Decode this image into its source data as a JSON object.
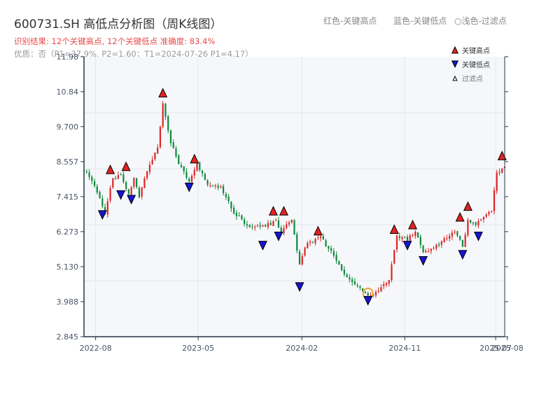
{
  "header": {
    "title": "600731.SH 高低点分析图（周K线图）",
    "result_text": "识别结果: 12个关键高点, 12个关键低点   准确度: 83.4%",
    "quality_text": "优质：否（P1=37.9%, P2=1.60；T1=2024-07-26 P1=4.17）",
    "legend_red": "红色-关键高点",
    "legend_blue": "蓝色-关键低点",
    "legend_light": "○浅色-过滤点"
  },
  "colors": {
    "up": "#e02424",
    "down": "#0f8a3c",
    "high_marker": "#e32222",
    "low_marker": "#1515d6",
    "filtered_marker": "#f0a030",
    "plot_bg": "#f5f7fa",
    "grid": "#e4e7ec",
    "axis": "#2a3546",
    "result_text": "#e84a4a"
  },
  "chart_data": {
    "type": "candlestick",
    "y_ticks": [
      "2.845",
      "3.988",
      "5.130",
      "6.273",
      "7.415",
      "8.557",
      "9.700",
      "10.84",
      "11.98"
    ],
    "y_tick_values": [
      2.845,
      3.988,
      5.13,
      6.273,
      7.415,
      8.557,
      9.7,
      10.84,
      11.98
    ],
    "ylim": [
      2.845,
      11.98
    ],
    "x_ticks": [
      "2022-08",
      "2023-05",
      "2024-02",
      "2024-11",
      "2025-07",
      "2025-08"
    ],
    "x_tick_dates": [
      "2022-08-01",
      "2023-05-01",
      "2024-02-01",
      "2024-11-01",
      "2025-07-01",
      "2025-08-01"
    ],
    "x_range": [
      "2022-07-01",
      "2025-07-25"
    ],
    "grid": true,
    "legend": {
      "position": "top-right",
      "entries": [
        {
          "label": "关键高点",
          "marker": "up-triangle"
        },
        {
          "label": "关键低点",
          "marker": "down-triangle"
        },
        {
          "label": "过滤点",
          "marker": "small-triangle"
        }
      ]
    },
    "anchors": [
      [
        "2022-07-01",
        8.3
      ],
      [
        "2022-08-05",
        7.6
      ],
      [
        "2022-08-26",
        6.9
      ],
      [
        "2022-09-16",
        8.0
      ],
      [
        "2022-10-07",
        8.1
      ],
      [
        "2022-10-28",
        7.5
      ],
      [
        "2022-11-11",
        8.0
      ],
      [
        "2022-11-25",
        7.4
      ],
      [
        "2022-12-16",
        8.3
      ],
      [
        "2023-01-13",
        9.0
      ],
      [
        "2023-01-27",
        10.5
      ],
      [
        "2023-02-17",
        9.2
      ],
      [
        "2023-03-10",
        8.5
      ],
      [
        "2023-04-07",
        7.9
      ],
      [
        "2023-04-28",
        8.5
      ],
      [
        "2023-05-26",
        7.8
      ],
      [
        "2023-06-30",
        7.7
      ],
      [
        "2023-08-04",
        6.9
      ],
      [
        "2023-09-15",
        6.4
      ],
      [
        "2023-10-13",
        6.4
      ],
      [
        "2023-11-24",
        6.6
      ],
      [
        "2023-12-08",
        6.3
      ],
      [
        "2024-01-05",
        6.7
      ],
      [
        "2024-01-26",
        5.2
      ],
      [
        "2024-02-09",
        5.8
      ],
      [
        "2024-03-22",
        6.1
      ],
      [
        "2024-04-19",
        5.6
      ],
      [
        "2024-05-24",
        4.9
      ],
      [
        "2024-06-28",
        4.5
      ],
      [
        "2024-07-26",
        4.2
      ],
      [
        "2024-08-23",
        4.3
      ],
      [
        "2024-09-20",
        4.7
      ],
      [
        "2024-10-11",
        6.1
      ],
      [
        "2024-10-25",
        6.1
      ],
      [
        "2024-11-08",
        6.0
      ],
      [
        "2024-11-29",
        6.3
      ],
      [
        "2024-12-20",
        5.6
      ],
      [
        "2025-01-10",
        5.7
      ],
      [
        "2025-02-14",
        6.0
      ],
      [
        "2025-03-14",
        6.3
      ],
      [
        "2025-04-04",
        5.8
      ],
      [
        "2025-04-18",
        6.6
      ],
      [
        "2025-05-09",
        6.5
      ],
      [
        "2025-05-30",
        6.7
      ],
      [
        "2025-06-20",
        7.0
      ],
      [
        "2025-07-04",
        8.2
      ],
      [
        "2025-07-25",
        8.4
      ]
    ],
    "key_highs": [
      {
        "date": "2022-09-09",
        "price": 8.3
      },
      {
        "date": "2022-10-21",
        "price": 8.4
      },
      {
        "date": "2023-01-27",
        "price": 10.8
      },
      {
        "date": "2023-04-21",
        "price": 8.65
      },
      {
        "date": "2023-11-17",
        "price": 6.95
      },
      {
        "date": "2023-12-15",
        "price": 6.95
      },
      {
        "date": "2024-03-15",
        "price": 6.3
      },
      {
        "date": "2024-10-04",
        "price": 6.35
      },
      {
        "date": "2024-11-22",
        "price": 6.5
      },
      {
        "date": "2025-03-28",
        "price": 6.75
      },
      {
        "date": "2025-04-18",
        "price": 7.1
      },
      {
        "date": "2025-07-18",
        "price": 8.75
      }
    ],
    "key_lows": [
      {
        "date": "2022-08-19",
        "price": 7.05
      },
      {
        "date": "2022-10-07",
        "price": 7.7
      },
      {
        "date": "2022-11-04",
        "price": 7.55
      },
      {
        "date": "2023-04-07",
        "price": 7.95
      },
      {
        "date": "2023-10-20",
        "price": 6.05
      },
      {
        "date": "2023-12-01",
        "price": 6.35
      },
      {
        "date": "2024-01-26",
        "price": 4.7
      },
      {
        "date": "2024-07-26",
        "price": 4.25
      },
      {
        "date": "2024-11-08",
        "price": 6.05
      },
      {
        "date": "2024-12-20",
        "price": 5.55
      },
      {
        "date": "2025-04-04",
        "price": 5.75
      },
      {
        "date": "2025-05-16",
        "price": 6.35
      }
    ],
    "filtered_points": [
      {
        "date": "2024-07-26",
        "price": 4.15
      }
    ]
  }
}
